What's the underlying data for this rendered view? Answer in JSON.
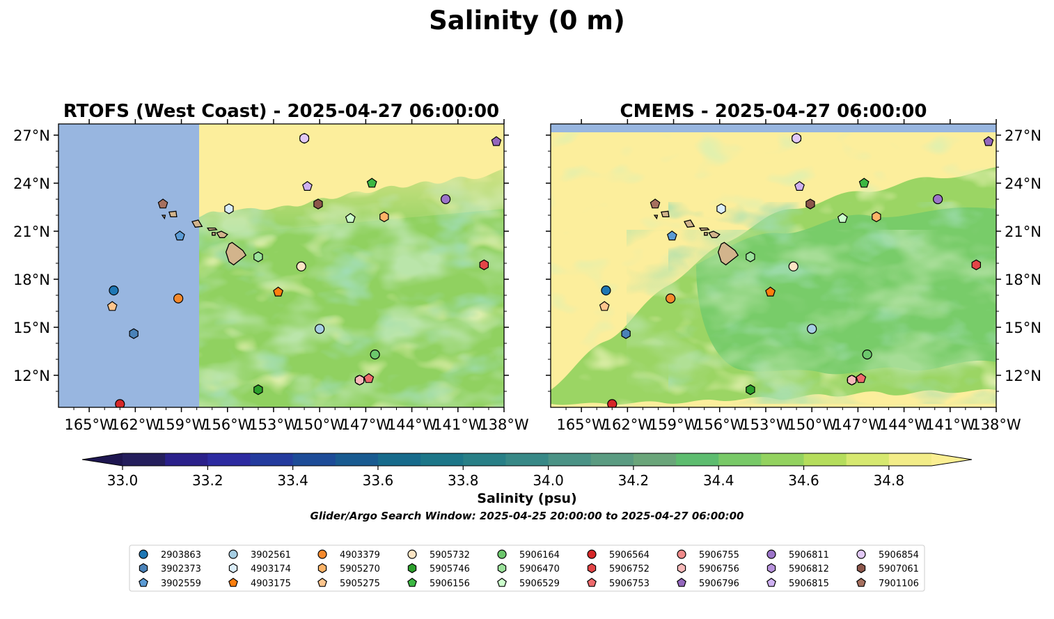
{
  "suptitle": "Salinity (0 m)",
  "colorbar": {
    "label": "Salinity (psu)",
    "tick_labels": [
      "33.0",
      "33.2",
      "33.4",
      "33.6",
      "33.8",
      "34.0",
      "34.2",
      "34.4",
      "34.6",
      "34.8"
    ],
    "range": [
      33.0,
      34.9
    ],
    "step": 0.1,
    "extend": "both"
  },
  "caption": "Glider/Argo Search Window: 2025-04-25 20:00:00 to 2025-04-27 06:00:00",
  "chart_data": [
    {
      "type": "heatmap",
      "title": "RTOFS (West Coast) - 2025-04-27 06:00:00",
      "xlabel": "",
      "ylabel": "",
      "xlim": [
        -167,
        -138
      ],
      "ylim": [
        10,
        27.7
      ],
      "x_tick_labels": [
        "165°W",
        "162°W",
        "159°W",
        "156°W",
        "153°W",
        "150°W",
        "147°W",
        "144°W",
        "141°W",
        "138°W"
      ],
      "y_tick_labels": [
        "12°N",
        "15°N",
        "18°N",
        "21°N",
        "24°N",
        "27°N"
      ],
      "y_axis_side": "left",
      "field_west_edge_lon": -157.9,
      "no_data_color": "#98b6e0",
      "field_note": "no data west of ~157.9°W"
    },
    {
      "type": "heatmap",
      "title": "CMEMS - 2025-04-27 06:00:00",
      "xlabel": "",
      "ylabel": "",
      "xlim": [
        -167,
        -138
      ],
      "ylim": [
        10,
        27.7
      ],
      "x_tick_labels": [
        "165°W",
        "162°W",
        "159°W",
        "156°W",
        "153°W",
        "150°W",
        "147°W",
        "144°W",
        "141°W",
        "138°W"
      ],
      "y_tick_labels": [
        "12°N",
        "15°N",
        "18°N",
        "21°N",
        "24°N",
        "27°N"
      ],
      "y_axis_side": "right",
      "field_north_edge_lat": 27.2,
      "no_data_color": "#98b6e0"
    }
  ],
  "platforms": [
    {
      "id": "2903863",
      "marker": "circle",
      "color": "#1f77b4",
      "lon": -163.4,
      "lat": 17.3
    },
    {
      "id": "3902373",
      "marker": "hexagon",
      "color": "#4a82b8",
      "lon": -162.1,
      "lat": 14.6
    },
    {
      "id": "3902559",
      "marker": "pentagon",
      "color": "#5b9bd5",
      "lon": -159.1,
      "lat": 20.7
    },
    {
      "id": "3902561",
      "marker": "circle",
      "color": "#a6cee3",
      "lon": -150.0,
      "lat": 14.9
    },
    {
      "id": "4903174",
      "marker": "hexagon",
      "color": "#dbeefb",
      "lon": -155.9,
      "lat": 22.4
    },
    {
      "id": "4903175",
      "marker": "pentagon",
      "color": "#ff7f0e",
      "lon": -152.7,
      "lat": 17.2
    },
    {
      "id": "4903379",
      "marker": "circle",
      "color": "#f5892c",
      "lon": -159.2,
      "lat": 16.8
    },
    {
      "id": "5905270",
      "marker": "hexagon",
      "color": "#fdb367",
      "lon": -145.8,
      "lat": 21.9
    },
    {
      "id": "5905275",
      "marker": "pentagon",
      "color": "#ffc58d",
      "lon": -163.5,
      "lat": 16.3
    },
    {
      "id": "5905732",
      "marker": "circle",
      "color": "#fde5c4",
      "lon": -151.2,
      "lat": 18.8
    },
    {
      "id": "5905746",
      "marker": "hexagon",
      "color": "#2ca02c",
      "lon": -154.0,
      "lat": 11.1
    },
    {
      "id": "5906156",
      "marker": "pentagon",
      "color": "#3cb843",
      "lon": -146.6,
      "lat": 24.0
    },
    {
      "id": "5906164",
      "marker": "circle",
      "color": "#6cc76c",
      "lon": -146.4,
      "lat": 13.3
    },
    {
      "id": "5906470",
      "marker": "hexagon",
      "color": "#9be29b",
      "lon": -154.0,
      "lat": 19.4
    },
    {
      "id": "5906529",
      "marker": "pentagon",
      "color": "#ccffcc",
      "lon": -148.0,
      "lat": 21.8
    },
    {
      "id": "5906564",
      "marker": "circle",
      "color": "#d62728",
      "lon": -163.0,
      "lat": 10.2
    },
    {
      "id": "5906752",
      "marker": "hexagon",
      "color": "#e34547",
      "lon": -139.3,
      "lat": 18.9
    },
    {
      "id": "5906753",
      "marker": "pentagon",
      "color": "#ee6a6c",
      "lon": -146.8,
      "lat": 11.8
    },
    {
      "id": "5906755",
      "marker": "circle",
      "color": "#f08a8a",
      "lon": -147.4,
      "lat": 11.7
    },
    {
      "id": "5906756",
      "marker": "hexagon",
      "color": "#f7b9b9",
      "lon": -147.4,
      "lat": 11.7
    },
    {
      "id": "5906796",
      "marker": "pentagon",
      "color": "#9467bd",
      "lon": -138.5,
      "lat": 26.6
    },
    {
      "id": "5906811",
      "marker": "circle",
      "color": "#9c74c9",
      "lon": -141.8,
      "lat": 23.0
    },
    {
      "id": "5906812",
      "marker": "hexagon",
      "color": "#b792dc",
      "lon": -151.0,
      "lat": 26.8
    },
    {
      "id": "5906815",
      "marker": "pentagon",
      "color": "#cfb1f2",
      "lon": -150.8,
      "lat": 23.8
    },
    {
      "id": "5906854",
      "marker": "circle",
      "color": "#e2c9f7",
      "lon": -151.0,
      "lat": 26.8
    },
    {
      "id": "5907061",
      "marker": "hexagon",
      "color": "#8c564b",
      "lon": -150.1,
      "lat": 22.7
    },
    {
      "id": "7901106",
      "marker": "pentagon",
      "color": "#a6705f",
      "lon": -160.2,
      "lat": 22.7
    }
  ]
}
